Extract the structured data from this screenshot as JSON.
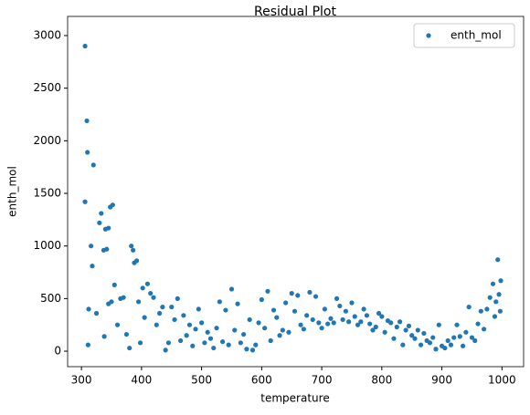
{
  "chart_data": {
    "type": "scatter",
    "title": "Residual Plot",
    "x_label": "temperature",
    "y_label": "enth_mol",
    "xlim": [
      277,
      1036
    ],
    "ylim": [
      -147,
      3182
    ],
    "xticks": [
      300,
      400,
      500,
      600,
      700,
      800,
      900,
      1000
    ],
    "yticks": [
      0,
      500,
      1000,
      1500,
      2000,
      2500,
      3000
    ],
    "grid": false,
    "legend": "upper right",
    "series": [
      {
        "name": "enth_mol",
        "color": "#1f77b4",
        "x": [
          306,
          309,
          310,
          320,
          306,
          316,
          318,
          312,
          311,
          325,
          330,
          333,
          337,
          340,
          345,
          348,
          352,
          342,
          338,
          345,
          350,
          355,
          360,
          365,
          370,
          375,
          380,
          383,
          386,
          388,
          392,
          395,
          398,
          402,
          405,
          410,
          415,
          420,
          425,
          430,
          435,
          440,
          445,
          450,
          455,
          460,
          465,
          470,
          475,
          480,
          485,
          490,
          495,
          500,
          505,
          510,
          515,
          520,
          525,
          530,
          535,
          540,
          545,
          550,
          555,
          560,
          565,
          570,
          575,
          580,
          585,
          590,
          595,
          600,
          605,
          610,
          615,
          620,
          625,
          630,
          635,
          640,
          645,
          650,
          655,
          660,
          665,
          670,
          675,
          680,
          685,
          690,
          695,
          700,
          705,
          710,
          715,
          720,
          725,
          730,
          735,
          740,
          745,
          750,
          755,
          760,
          765,
          770,
          775,
          780,
          785,
          790,
          795,
          800,
          805,
          810,
          815,
          820,
          825,
          830,
          835,
          840,
          845,
          850,
          855,
          860,
          865,
          870,
          875,
          880,
          885,
          890,
          895,
          900,
          905,
          910,
          915,
          920,
          925,
          930,
          935,
          940,
          945,
          950,
          955,
          960,
          965,
          970,
          975,
          980,
          985,
          988,
          990,
          993,
          995,
          998,
          997
        ],
        "values": [
          2900,
          2190,
          1890,
          1770,
          1420,
          1000,
          810,
          400,
          60,
          360,
          1220,
          1310,
          960,
          1160,
          1170,
          1370,
          1390,
          970,
          140,
          450,
          470,
          630,
          250,
          500,
          510,
          160,
          30,
          1000,
          960,
          840,
          860,
          470,
          80,
          600,
          320,
          640,
          550,
          510,
          250,
          360,
          420,
          10,
          80,
          420,
          300,
          500,
          100,
          340,
          150,
          250,
          50,
          210,
          400,
          270,
          80,
          180,
          120,
          30,
          220,
          470,
          90,
          390,
          60,
          590,
          200,
          450,
          80,
          160,
          20,
          300,
          10,
          60,
          270,
          490,
          220,
          570,
          100,
          390,
          320,
          150,
          200,
          460,
          180,
          550,
          380,
          530,
          250,
          210,
          340,
          560,
          300,
          520,
          270,
          220,
          400,
          260,
          310,
          270,
          500,
          430,
          300,
          380,
          280,
          460,
          330,
          250,
          280,
          400,
          340,
          260,
          200,
          230,
          360,
          330,
          180,
          290,
          270,
          120,
          230,
          280,
          60,
          200,
          240,
          150,
          120,
          200,
          60,
          170,
          100,
          80,
          130,
          20,
          250,
          50,
          30,
          100,
          60,
          130,
          250,
          140,
          50,
          180,
          420,
          130,
          100,
          260,
          380,
          210,
          400,
          510,
          640,
          330,
          470,
          870,
          540,
          670,
          380
        ]
      }
    ]
  }
}
